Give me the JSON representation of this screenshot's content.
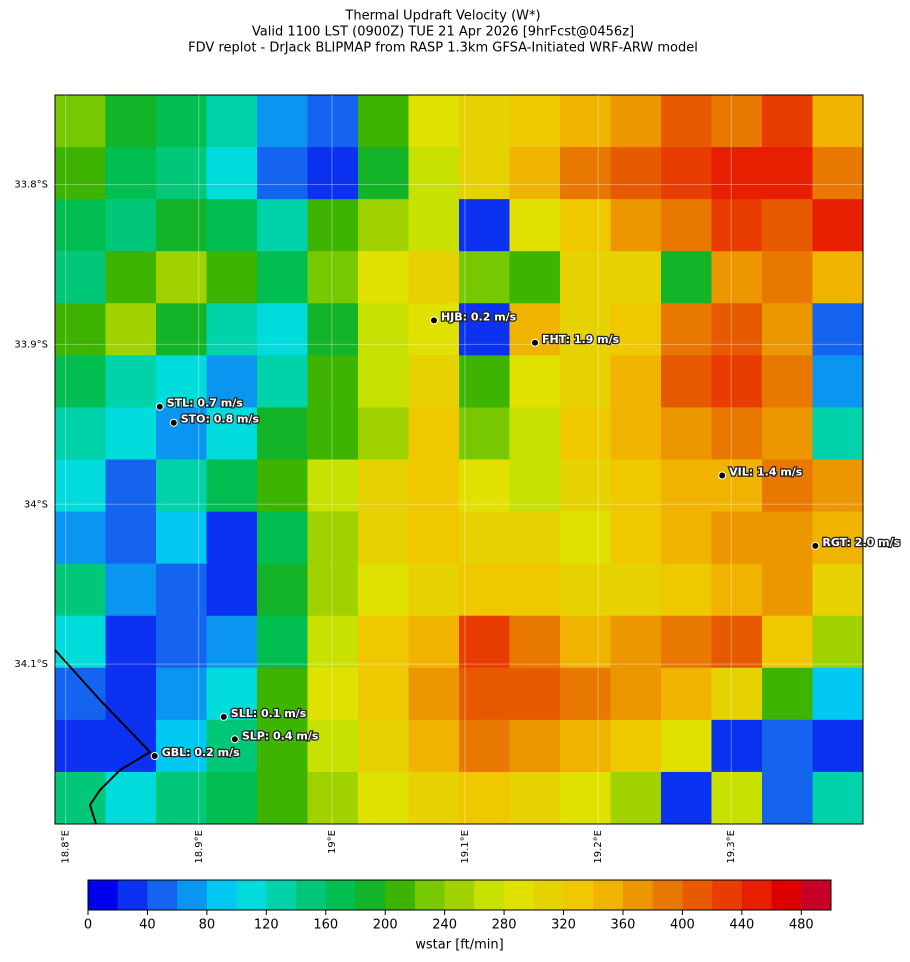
{
  "chart_data": {
    "type": "heatmap",
    "title": "Thermal Updraft Velocity (W*)",
    "subtitle": "Valid 1100 LST (0900Z) TUE 21 Apr 2026 [9hrFcst@0456z]",
    "caption": "FDV replot - DrJack BLIPMAP from RASP 1.3km GFSA-Initiated WRF-ARW model",
    "xlim": [
      18.792,
      19.399
    ],
    "ylim": [
      -34.2,
      -33.744
    ],
    "xticks": [
      {
        "value": 18.8,
        "label": "18.8°E"
      },
      {
        "value": 18.9,
        "label": "18.9°E"
      },
      {
        "value": 19.0,
        "label": "19°E"
      },
      {
        "value": 19.1,
        "label": "19.1°E"
      },
      {
        "value": 19.2,
        "label": "19.2°E"
      },
      {
        "value": 19.3,
        "label": "19.3°E"
      }
    ],
    "yticks": [
      {
        "value": -33.8,
        "label": "33.8°S"
      },
      {
        "value": -33.9,
        "label": "33.9°S"
      },
      {
        "value": -34.0,
        "label": "34°S"
      },
      {
        "value": -34.1,
        "label": "34.1°S"
      }
    ],
    "grid": [
      [
        220,
        180,
        170,
        120,
        60,
        40,
        200,
        280,
        300,
        320,
        340,
        360,
        400,
        380,
        420,
        340
      ],
      [
        200,
        160,
        140,
        100,
        40,
        20,
        180,
        260,
        300,
        340,
        380,
        400,
        420,
        440,
        440,
        380
      ],
      [
        160,
        140,
        180,
        160,
        120,
        200,
        240,
        260,
        20,
        280,
        320,
        360,
        380,
        420,
        400,
        440
      ],
      [
        140,
        200,
        240,
        200,
        160,
        220,
        280,
        300,
        220,
        200,
        300,
        300,
        180,
        360,
        380,
        340
      ],
      [
        200,
        240,
        180,
        120,
        100,
        180,
        260,
        280,
        20,
        340,
        300,
        320,
        380,
        400,
        360,
        40
      ],
      [
        160,
        120,
        100,
        60,
        120,
        200,
        260,
        300,
        200,
        280,
        300,
        340,
        400,
        420,
        380,
        60
      ],
      [
        120,
        100,
        60,
        100,
        180,
        200,
        240,
        320,
        220,
        260,
        320,
        340,
        360,
        380,
        360,
        120
      ],
      [
        100,
        40,
        120,
        160,
        200,
        260,
        300,
        320,
        280,
        260,
        300,
        320,
        340,
        340,
        380,
        360
      ],
      [
        60,
        40,
        80,
        20,
        160,
        240,
        300,
        320,
        300,
        300,
        280,
        320,
        340,
        360,
        360,
        340
      ],
      [
        140,
        60,
        40,
        20,
        180,
        240,
        280,
        300,
        320,
        320,
        300,
        300,
        320,
        340,
        360,
        300
      ],
      [
        100,
        20,
        40,
        60,
        160,
        260,
        320,
        340,
        420,
        380,
        340,
        360,
        380,
        400,
        320,
        240
      ],
      [
        40,
        20,
        60,
        100,
        200,
        280,
        320,
        360,
        400,
        400,
        380,
        360,
        340,
        300,
        200,
        80
      ],
      [
        20,
        20,
        80,
        140,
        200,
        260,
        300,
        340,
        380,
        360,
        340,
        320,
        280,
        20,
        40,
        20
      ],
      [
        140,
        100,
        140,
        160,
        200,
        240,
        280,
        300,
        320,
        300,
        280,
        240,
        20,
        260,
        40,
        120
      ]
    ],
    "levels": [
      0,
      20,
      40,
      60,
      80,
      100,
      120,
      140,
      160,
      180,
      200,
      220,
      240,
      260,
      280,
      300,
      320,
      340,
      360,
      380,
      400,
      420,
      440,
      460,
      480,
      500
    ],
    "colors": [
      "#0000f0",
      "#0a32f0",
      "#1464f0",
      "#0a96f0",
      "#00c8f0",
      "#00dcdc",
      "#00d2aa",
      "#00c878",
      "#00be50",
      "#14b428",
      "#3cb400",
      "#78c800",
      "#a0d200",
      "#c8e100",
      "#e1e100",
      "#e6d200",
      "#f0c800",
      "#f0b400",
      "#ec9600",
      "#e87800",
      "#e85a00",
      "#e83c00",
      "#e81e00",
      "#dc0000",
      "#c80028"
    ],
    "colorbar_ticks": [
      0,
      40,
      80,
      120,
      160,
      200,
      240,
      280,
      320,
      360,
      400,
      440,
      480
    ],
    "colorbar_label": "wstar [ft/min]",
    "stations": [
      {
        "label": "HJB: 0.2 m/s",
        "lon": 19.0767,
        "lat": -33.885
      },
      {
        "label": "FHT: 1.9 m/s",
        "lon": 19.1526,
        "lat": -33.899
      },
      {
        "label": "STL: 0.7 m/s",
        "lon": 18.8707,
        "lat": -33.939
      },
      {
        "label": "STO: 0.8 m/s",
        "lon": 18.8812,
        "lat": -33.949
      },
      {
        "label": "VIL: 1.4 m/s",
        "lon": 19.2932,
        "lat": -33.982
      },
      {
        "label": "RGT: 2.0 m/s",
        "lon": 19.3632,
        "lat": -34.026
      },
      {
        "label": "SLL: 0.1 m/s",
        "lon": 18.9188,
        "lat": -34.133
      },
      {
        "label": "SLP: 0.4 m/s",
        "lon": 18.9271,
        "lat": -34.147
      },
      {
        "label": "GBL: 0.2 m/s",
        "lon": 18.8669,
        "lat": -34.1575
      }
    ]
  }
}
